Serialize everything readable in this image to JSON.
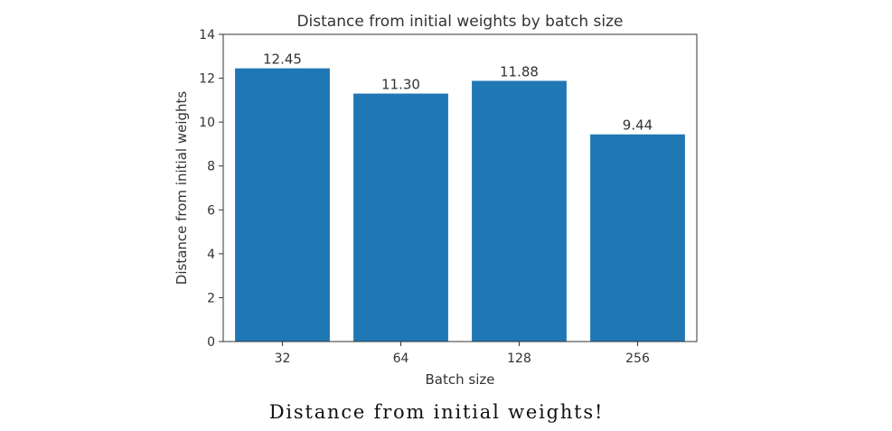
{
  "chart_data": {
    "type": "bar",
    "title": "Distance from initial weights by batch size",
    "xlabel": "Batch size",
    "ylabel": "Distance from initial weights",
    "categories": [
      "32",
      "64",
      "128",
      "256"
    ],
    "values": [
      12.45,
      11.3,
      11.88,
      9.44
    ],
    "data_labels": [
      "12.45",
      "11.30",
      "11.88",
      "9.44"
    ],
    "ylim": [
      0,
      14
    ],
    "yticks": [
      0,
      2,
      4,
      6,
      8,
      10,
      12,
      14
    ],
    "grid": false,
    "bar_color": "#1f77b4"
  },
  "caption": "Distance from initial weights!"
}
